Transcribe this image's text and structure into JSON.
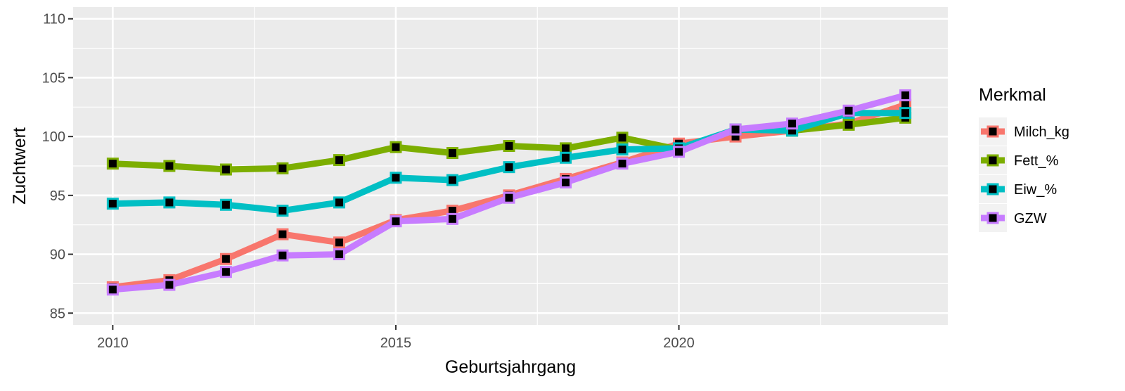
{
  "chart_data": {
    "type": "line",
    "xlabel": "Geburtsjahrgang",
    "ylabel": "Zuchtwert",
    "xlim": [
      2009.3,
      2024.75
    ],
    "ylim": [
      84,
      111
    ],
    "x_ticks": [
      2010,
      2015,
      2020
    ],
    "y_ticks": [
      85,
      90,
      95,
      100,
      105,
      110
    ],
    "grid": true,
    "legend_title": "Merkmal",
    "legend_position": "right",
    "x": [
      2010,
      2011,
      2012,
      2013,
      2014,
      2015,
      2016,
      2017,
      2018,
      2019,
      2020,
      2021,
      2022,
      2023,
      2024
    ],
    "series": [
      {
        "name": "Milch_kg",
        "color": "#F8766D",
        "values": [
          87.2,
          87.8,
          89.6,
          91.7,
          91.0,
          92.9,
          93.7,
          95.0,
          96.4,
          97.8,
          99.4,
          100.0,
          100.5,
          101.1,
          102.7
        ]
      },
      {
        "name": "Fett_%",
        "color": "#7CAE00",
        "values": [
          97.7,
          97.5,
          97.2,
          97.3,
          98.0,
          99.1,
          98.6,
          99.2,
          99.0,
          99.9,
          98.9,
          100.6,
          100.5,
          101.0,
          101.6
        ]
      },
      {
        "name": "Eiw_%",
        "color": "#00BFC4",
        "values": [
          94.3,
          94.4,
          94.2,
          93.7,
          94.4,
          96.5,
          96.3,
          97.4,
          98.2,
          98.9,
          99.0,
          100.6,
          100.5,
          102.0,
          102.0
        ]
      },
      {
        "name": "GZW",
        "color": "#C77CFF",
        "values": [
          87.0,
          87.4,
          88.5,
          89.9,
          90.0,
          92.8,
          93.0,
          94.8,
          96.1,
          97.7,
          98.7,
          100.6,
          101.1,
          102.2,
          103.5
        ]
      }
    ]
  }
}
